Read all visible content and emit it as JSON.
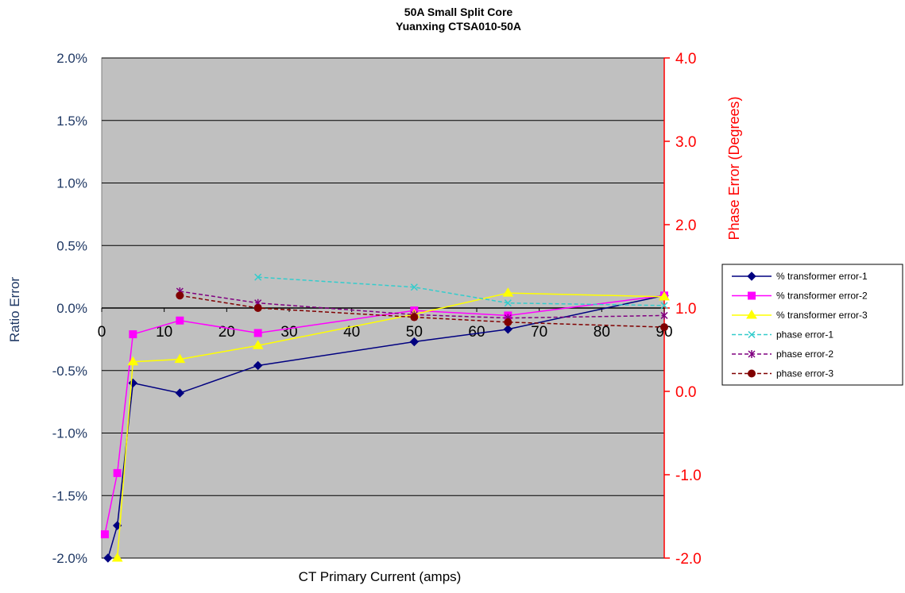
{
  "chart_data": {
    "type": "line",
    "title": "50A Small Split Core",
    "subtitle": "Yuanxing CTSA010-50A",
    "xlabel": "CT Primary Current (amps)",
    "ylabel": "Ratio Error",
    "y2label": "Phase Error (Degrees)",
    "xlim": [
      0,
      90
    ],
    "ylim": [
      -2.0,
      2.0
    ],
    "y2lim": [
      -2.0,
      4.0
    ],
    "x_ticks": [
      "0",
      "10",
      "20",
      "30",
      "40",
      "50",
      "60",
      "70",
      "80",
      "90"
    ],
    "y_ticks": [
      "-2.0%",
      "-1.5%",
      "-1.0%",
      "-0.5%",
      "0.0%",
      "0.5%",
      "1.0%",
      "1.5%",
      "2.0%"
    ],
    "y2_ticks": [
      "-2.0",
      "-1.0",
      "0.0",
      "1.0",
      "2.0",
      "3.0",
      "4.0"
    ],
    "grid": "horizontal",
    "plot_background": "#c0c0c0",
    "legend_position": "right",
    "series": [
      {
        "name": "% transformer error-1",
        "axis": "left",
        "color": "#000080",
        "line": "solid",
        "marker": "diamond",
        "x": [
          1,
          2.5,
          5,
          12.5,
          25,
          50,
          65,
          90
        ],
        "y": [
          -2.0,
          -1.74,
          -0.6,
          -0.68,
          -0.46,
          -0.27,
          -0.17,
          0.1
        ]
      },
      {
        "name": "% transformer error-2",
        "axis": "left",
        "color": "#ff00ff",
        "line": "solid",
        "marker": "square",
        "x": [
          0.5,
          2.5,
          5,
          12.5,
          25,
          50,
          65,
          90
        ],
        "y": [
          -1.81,
          -1.32,
          -0.21,
          -0.1,
          -0.2,
          -0.02,
          -0.06,
          0.1
        ]
      },
      {
        "name": "% transformer error-3",
        "axis": "left",
        "color": "#ffff00",
        "line": "solid",
        "marker": "triangle",
        "x": [
          2.5,
          5,
          12.5,
          25,
          50,
          65,
          90
        ],
        "y": [
          -2.0,
          -0.43,
          -0.41,
          -0.3,
          -0.05,
          0.12,
          0.09
        ]
      },
      {
        "name": "phase error-1",
        "axis": "right",
        "color": "#33cccc",
        "line": "dashed",
        "marker": "x",
        "x": [
          25,
          50,
          65,
          90
        ],
        "y": [
          1.37,
          1.25,
          1.06,
          1.03
        ]
      },
      {
        "name": "phase error-2",
        "axis": "right",
        "color": "#800080",
        "line": "dashed",
        "marker": "star",
        "x": [
          12.5,
          25,
          50,
          65,
          90
        ],
        "y": [
          1.2,
          1.06,
          0.92,
          0.88,
          0.91
        ]
      },
      {
        "name": "phase error-3",
        "axis": "right",
        "color": "#800000",
        "line": "dashed",
        "marker": "circle",
        "x": [
          12.5,
          25,
          50,
          65,
          90
        ],
        "y": [
          1.15,
          1.0,
          0.89,
          0.83,
          0.77
        ]
      }
    ]
  }
}
